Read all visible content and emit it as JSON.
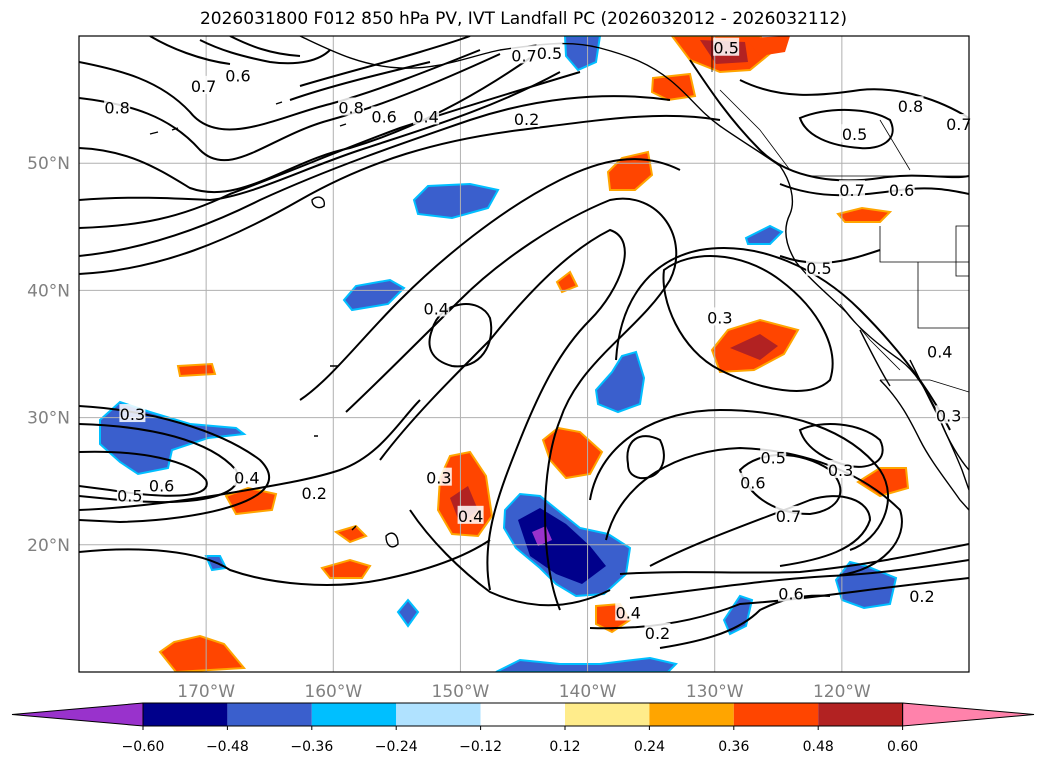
{
  "title": "2026031800 F012 850 hPa PV, IVT Landfall PC (2026032012 - 2026032112)",
  "map": {
    "lon_range": [
      -180,
      -110
    ],
    "lat_range": [
      10,
      60
    ],
    "lon_ticks": [
      {
        "value": -170,
        "label": "170°W"
      },
      {
        "value": -160,
        "label": "160°W"
      },
      {
        "value": -150,
        "label": "150°W"
      },
      {
        "value": -140,
        "label": "140°W"
      },
      {
        "value": -130,
        "label": "130°W"
      },
      {
        "value": -120,
        "label": "120°W"
      }
    ],
    "lat_ticks": [
      {
        "value": 20,
        "label": "20°N"
      },
      {
        "value": 30,
        "label": "30°N"
      },
      {
        "value": 40,
        "label": "40°N"
      },
      {
        "value": 50,
        "label": "50°N"
      }
    ],
    "grid": true
  },
  "contour_labels": [
    {
      "text": "0.7",
      "lon": -170.2,
      "lat": 56.0
    },
    {
      "text": "0.6",
      "lon": -167.5,
      "lat": 56.8
    },
    {
      "text": "0.8",
      "lon": -177.0,
      "lat": 54.3
    },
    {
      "text": "0.8",
      "lon": -158.6,
      "lat": 54.3
    },
    {
      "text": "0.6",
      "lon": -156.0,
      "lat": 53.6
    },
    {
      "text": "0.4",
      "lon": -152.7,
      "lat": 53.6
    },
    {
      "text": "0.7",
      "lon": -145.0,
      "lat": 58.4
    },
    {
      "text": "0.5",
      "lon": -143.0,
      "lat": 58.6
    },
    {
      "text": "0.2",
      "lon": -144.8,
      "lat": 53.4
    },
    {
      "text": "0.5",
      "lon": -129.1,
      "lat": 59.0
    },
    {
      "text": "0.8",
      "lon": -114.6,
      "lat": 54.4
    },
    {
      "text": "0.7",
      "lon": -110.8,
      "lat": 53.0
    },
    {
      "text": "0.5",
      "lon": -119.0,
      "lat": 52.2
    },
    {
      "text": "0.7",
      "lon": -119.2,
      "lat": 47.8
    },
    {
      "text": "0.6",
      "lon": -115.3,
      "lat": 47.8
    },
    {
      "text": "0.5",
      "lon": -121.8,
      "lat": 41.7
    },
    {
      "text": "0.4",
      "lon": -151.9,
      "lat": 38.5
    },
    {
      "text": "0.3",
      "lon": -129.6,
      "lat": 37.8
    },
    {
      "text": "0.4",
      "lon": -112.3,
      "lat": 35.1
    },
    {
      "text": "0.3",
      "lon": -111.6,
      "lat": 30.1
    },
    {
      "text": "0.3",
      "lon": -175.8,
      "lat": 30.2
    },
    {
      "text": "0.4",
      "lon": -166.8,
      "lat": 25.2
    },
    {
      "text": "0.6",
      "lon": -173.5,
      "lat": 24.6
    },
    {
      "text": "0.5",
      "lon": -176.0,
      "lat": 23.8
    },
    {
      "text": "0.2",
      "lon": -161.5,
      "lat": 24.0
    },
    {
      "text": "0.3",
      "lon": -151.7,
      "lat": 25.2
    },
    {
      "text": "0.4",
      "lon": -149.2,
      "lat": 22.2
    },
    {
      "text": "0.5",
      "lon": -125.4,
      "lat": 26.8
    },
    {
      "text": "0.6",
      "lon": -127.0,
      "lat": 24.8
    },
    {
      "text": "0.3",
      "lon": -120.1,
      "lat": 25.8
    },
    {
      "text": "0.7",
      "lon": -124.2,
      "lat": 22.2
    },
    {
      "text": "0.6",
      "lon": -124.0,
      "lat": 16.1
    },
    {
      "text": "0.2",
      "lon": -113.7,
      "lat": 15.9
    },
    {
      "text": "0.4",
      "lon": -136.8,
      "lat": 14.6
    },
    {
      "text": "0.2",
      "lon": -134.5,
      "lat": 13.0
    }
  ],
  "colorbar": {
    "colors": [
      "#9932cc",
      "#00008b",
      "#3a5fcd",
      "#00bfff",
      "#b0e2ff",
      "#ffffff",
      "#ffec8b",
      "#ffa500",
      "#ff4500",
      "#b22222",
      "#ff82ab"
    ],
    "ticks": [
      "−0.60",
      "−0.48",
      "−0.36",
      "−0.24",
      "−0.12",
      "0.12",
      "0.24",
      "0.36",
      "0.48",
      "0.60"
    ],
    "extend": "both"
  },
  "colors": {
    "coast": "#000000",
    "contour": "#000000",
    "grid": "#b0b0b0",
    "axis_text": "#808080"
  }
}
